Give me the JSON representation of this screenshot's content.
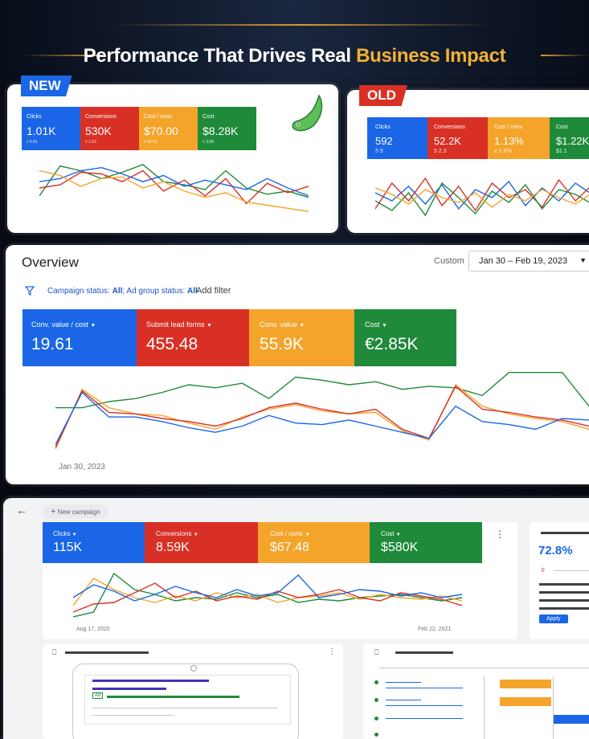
{
  "header": {
    "title_prefix": "Performance That Drives Real",
    "title_accent": "Business Impact"
  },
  "colors": {
    "blue": "#1a66e6",
    "red": "#d93025",
    "yellow": "#f4a42a",
    "green": "#1f8a3a",
    "gold": "#f2b234"
  },
  "new_panel": {
    "badge": "NEW",
    "metrics": [
      {
        "label": "Clicks",
        "value": "1.01K",
        "sub": "± 5.81"
      },
      {
        "label": "Conversions",
        "value": "530K",
        "sub": "± 1.03"
      },
      {
        "label": "Cost / conv.",
        "value": "$70.00",
        "sub": "± 40.50"
      },
      {
        "label": "Cost",
        "value": "$8.28K",
        "sub": "± 3.88"
      }
    ],
    "icon": "mascot-icon"
  },
  "old_panel": {
    "badge": "OLD",
    "metrics": [
      {
        "label": "Clicks",
        "value": "592",
        "sub": "5 9"
      },
      {
        "label": "Conversions",
        "value": "52.2K",
        "sub": "5 2.3"
      },
      {
        "label": "Cost / conv.",
        "value": "1.13%",
        "sub": "± 1.8%"
      },
      {
        "label": "Cost",
        "value": "$1.22K",
        "sub": "$1.1"
      }
    ]
  },
  "overview": {
    "title": "Overview",
    "custom_label": "Custom",
    "date_range": "Jan 30 – Feb 19, 2023",
    "filter_prefix": "Campaign status:",
    "filter_all_1": "All",
    "filter_mid": "; Ad group status:",
    "filter_all_2": "All",
    "add_filter": "Add filter",
    "metrics": [
      {
        "label": "Conv. value / cost",
        "value": "19.61"
      },
      {
        "label": "Submit lead forms",
        "value": "455.48"
      },
      {
        "label": "Conv. value",
        "value": "55.9K"
      },
      {
        "label": "Cost",
        "value": "€2.85K"
      }
    ],
    "x_start": "Jan 30, 2023"
  },
  "campaign": {
    "new_campaign": "New campaign",
    "metrics": [
      {
        "label": "Clicks",
        "value": "115K"
      },
      {
        "label": "Conversions",
        "value": "8.59K"
      },
      {
        "label": "Cost / conv.",
        "value": "$67.48"
      },
      {
        "label": "Cost",
        "value": "$580K"
      }
    ],
    "x_start": "Aug 17, 2020",
    "x_end": "Feb 22, 2021",
    "side_value": "72.8%",
    "apply": "Apply",
    "ad_tag": "Ad"
  }
}
